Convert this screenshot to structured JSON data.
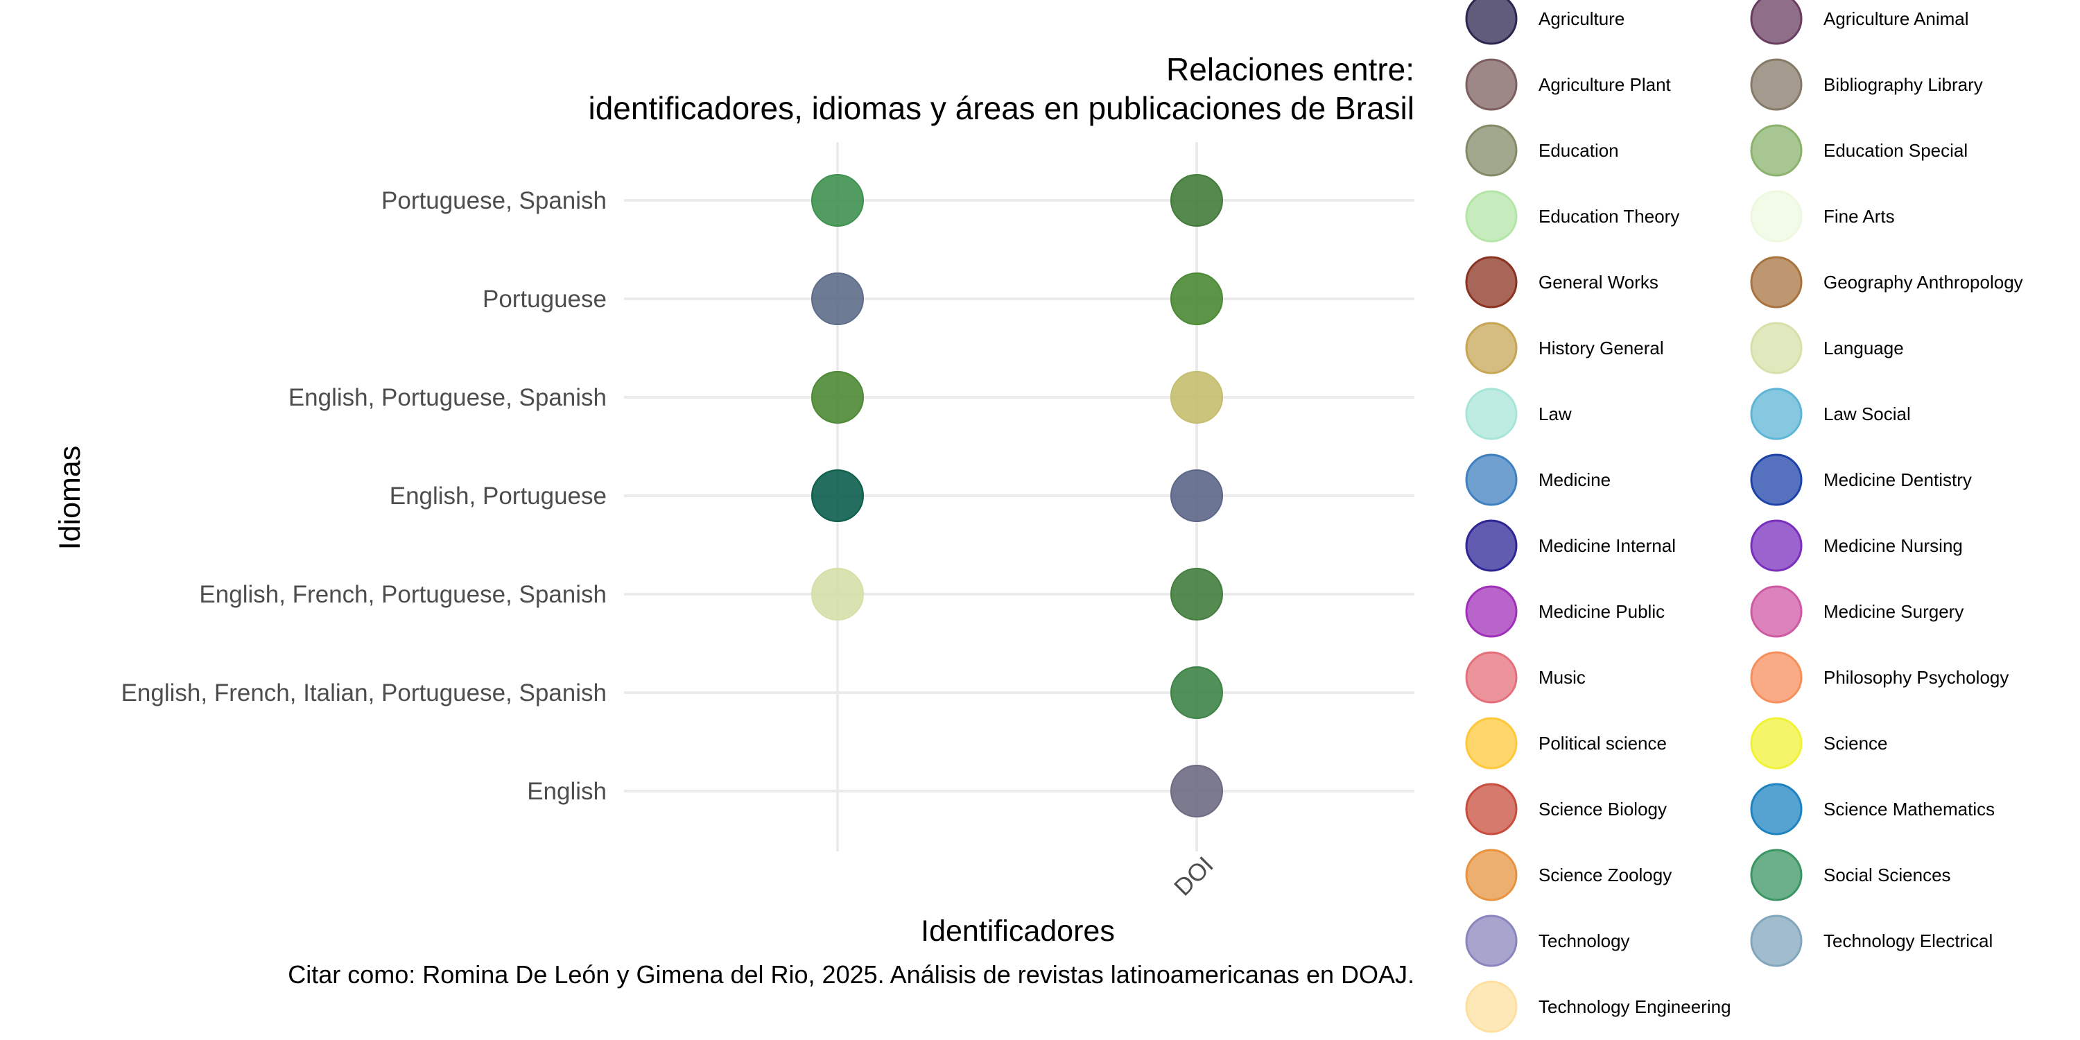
{
  "chart_data": {
    "type": "scatter",
    "title_line1": "Relaciones entre:",
    "title_line2": "identificadores, idiomas y áreas en publicaciones de Brasil",
    "xlabel": "Identificadores",
    "ylabel": "Idiomas",
    "caption": "Citar como: Romina De León y Gimena del Rio, 2025. Análisis de revistas latinoamericanas en DOAJ.",
    "x_categories": [
      "",
      "DOI"
    ],
    "y_categories": [
      "English",
      "English, French, Italian, Portuguese, Spanish",
      "English, French, Portuguese, Spanish",
      "English, Portuguese",
      "English, Portuguese, Spanish",
      "Portuguese",
      "Portuguese, Spanish"
    ],
    "points": [
      {
        "x": "",
        "y": "Portuguese, Spanish",
        "color": "#3f9150"
      },
      {
        "x": "",
        "y": "Portuguese",
        "color": "#5e6d8a"
      },
      {
        "x": "",
        "y": "English, Portuguese, Spanish",
        "color": "#4c8a35"
      },
      {
        "x": "",
        "y": "English, Portuguese",
        "color": "#0b5e4c"
      },
      {
        "x": "",
        "y": "English, French, Portuguese, Spanish",
        "color": "#d5e0a8"
      },
      {
        "x": "DOI",
        "y": "Portuguese, Spanish",
        "color": "#437c3a"
      },
      {
        "x": "DOI",
        "y": "Portuguese",
        "color": "#4b8a34"
      },
      {
        "x": "DOI",
        "y": "English, Portuguese, Spanish",
        "color": "#c4be6e"
      },
      {
        "x": "DOI",
        "y": "English, Portuguese",
        "color": "#5c6788"
      },
      {
        "x": "DOI",
        "y": "English, French, Portuguese, Spanish",
        "color": "#437e3e"
      },
      {
        "x": "DOI",
        "y": "English, French, Italian, Portuguese, Spanish",
        "color": "#3e8447"
      },
      {
        "x": "DOI",
        "y": "English",
        "color": "#6e6b82"
      }
    ],
    "legend": [
      {
        "label": "Agriculture",
        "color": "#2e2650"
      },
      {
        "label": "Agriculture Animal",
        "color": "#6a3d60"
      },
      {
        "label": "Agriculture Plant",
        "color": "#7e5f5f"
      },
      {
        "label": "Bibliography Library",
        "color": "#857a68"
      },
      {
        "label": "Education",
        "color": "#838b68"
      },
      {
        "label": "Education Special",
        "color": "#8bb36e"
      },
      {
        "label": "Education Theory",
        "color": "#b3e5a8"
      },
      {
        "label": "Fine Arts",
        "color": "#eef8e0"
      },
      {
        "label": "General Works",
        "color": "#8b3322"
      },
      {
        "label": "Geography Anthropology",
        "color": "#a8733f"
      },
      {
        "label": "History General",
        "color": "#c7a655"
      },
      {
        "label": "Language",
        "color": "#d6e0a8"
      },
      {
        "label": "Law",
        "color": "#a8e5d8"
      },
      {
        "label": "Law Social",
        "color": "#5eb5d6"
      },
      {
        "label": "Medicine",
        "color": "#3f80c0"
      },
      {
        "label": "Medicine Dentistry",
        "color": "#1e43a8"
      },
      {
        "label": "Medicine Internal",
        "color": "#2e2596"
      },
      {
        "label": "Medicine Nursing",
        "color": "#7a2fbd"
      },
      {
        "label": "Medicine Public",
        "color": "#a030b8"
      },
      {
        "label": "Medicine Surgery",
        "color": "#cf5aa3"
      },
      {
        "label": "Music",
        "color": "#e4707b"
      },
      {
        "label": "Philosophy Psychology",
        "color": "#f58f5c"
      },
      {
        "label": "Political science",
        "color": "#fec83a"
      },
      {
        "label": "Science",
        "color": "#f1f238"
      },
      {
        "label": "Science Biology",
        "color": "#c94d3e"
      },
      {
        "label": "Science Mathematics",
        "color": "#1e83c0"
      },
      {
        "label": "Science Zoology",
        "color": "#e69440"
      },
      {
        "label": "Social Sciences",
        "color": "#3b9663"
      },
      {
        "label": "Technology",
        "color": "#8a86bd"
      },
      {
        "label": "Technology Electrical",
        "color": "#82a6bb"
      },
      {
        "label": "Technology Engineering",
        "color": "#fde0a0"
      }
    ]
  }
}
